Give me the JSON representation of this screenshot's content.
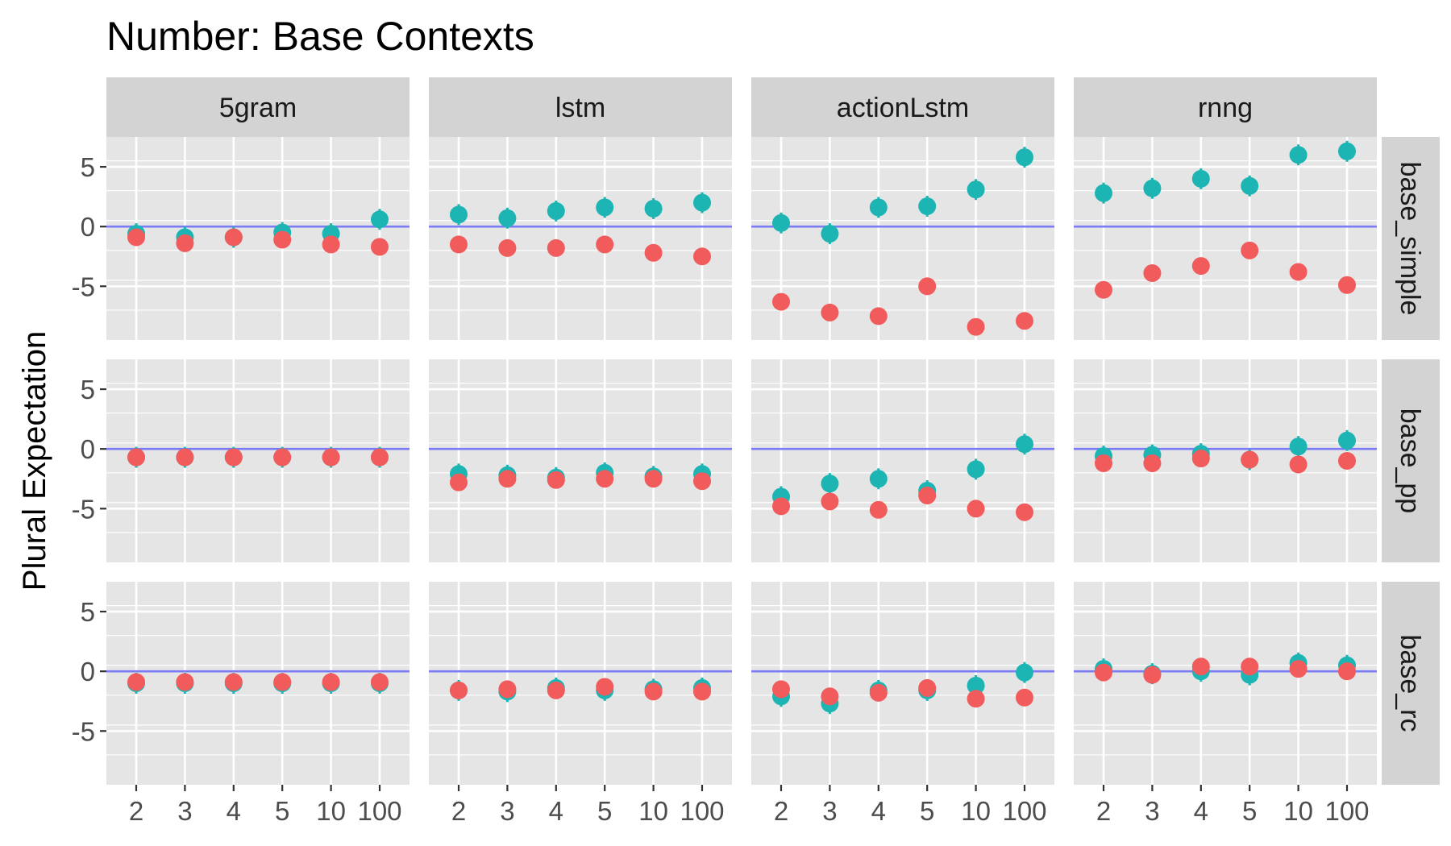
{
  "chart_data": {
    "type": "scatter",
    "title": "Number: Base Contexts",
    "ylabel": "Plural Expectation",
    "xlabel": "",
    "x_categories": [
      "2",
      "3",
      "4",
      "5",
      "10",
      "100"
    ],
    "y_ticks": [
      5,
      0,
      -5
    ],
    "ylim": [
      -9.5,
      7.5
    ],
    "reference_line": 0,
    "columns": [
      "5gram",
      "lstm",
      "actionLstm",
      "rnng"
    ],
    "rows": [
      "base_simple",
      "base_pp",
      "base_rc"
    ],
    "grid": true,
    "legend": "none",
    "colors": {
      "teal": "#1cb5b3",
      "red": "#f15b5b",
      "reference_line": "#7b7bf5",
      "panel_bg": "#e5e5e5",
      "strip_bg": "#d3d3d3",
      "grid": "#ffffff"
    },
    "panels": [
      {
        "row": "base_simple",
        "column": "5gram",
        "teal": [
          -0.6,
          -0.9,
          -0.9,
          -0.5,
          -0.6,
          0.6
        ],
        "red": [
          -0.9,
          -1.4,
          -0.9,
          -1.1,
          -1.5,
          -1.7
        ]
      },
      {
        "row": "base_simple",
        "column": "lstm",
        "teal": [
          1.0,
          0.7,
          1.3,
          1.6,
          1.5,
          2.0
        ],
        "red": [
          -1.5,
          -1.8,
          -1.8,
          -1.5,
          -2.2,
          -2.5
        ]
      },
      {
        "row": "base_simple",
        "column": "actionLstm",
        "teal": [
          0.3,
          -0.6,
          1.6,
          1.7,
          3.1,
          5.8
        ],
        "red": [
          -6.3,
          -7.2,
          -7.5,
          -5.0,
          -8.4,
          -7.9
        ]
      },
      {
        "row": "base_simple",
        "column": "rnng",
        "teal": [
          2.8,
          3.2,
          4.0,
          3.4,
          6.0,
          6.3
        ],
        "red": [
          -5.3,
          -3.9,
          -3.3,
          -2.0,
          -3.8,
          -4.9
        ]
      },
      {
        "row": "base_pp",
        "column": "5gram",
        "teal": [
          -0.7,
          -0.7,
          -0.7,
          -0.7,
          -0.7,
          -0.7
        ],
        "red": [
          -0.7,
          -0.7,
          -0.7,
          -0.7,
          -0.7,
          -0.7
        ]
      },
      {
        "row": "base_pp",
        "column": "lstm",
        "teal": [
          -2.1,
          -2.2,
          -2.4,
          -2.0,
          -2.3,
          -2.1
        ],
        "red": [
          -2.8,
          -2.5,
          -2.6,
          -2.5,
          -2.5,
          -2.7
        ]
      },
      {
        "row": "base_pp",
        "column": "actionLstm",
        "teal": [
          -4.0,
          -2.9,
          -2.5,
          -3.5,
          -1.7,
          0.4
        ],
        "red": [
          -4.8,
          -4.4,
          -5.1,
          -3.9,
          -5.0,
          -5.3
        ]
      },
      {
        "row": "base_pp",
        "column": "rnng",
        "teal": [
          -0.6,
          -0.5,
          -0.4,
          -0.9,
          0.2,
          0.7
        ],
        "red": [
          -1.2,
          -1.2,
          -0.8,
          -0.9,
          -1.3,
          -1.0
        ]
      },
      {
        "row": "base_rc",
        "column": "5gram",
        "teal": [
          -1.0,
          -1.0,
          -1.0,
          -1.0,
          -1.0,
          -1.0
        ],
        "red": [
          -0.9,
          -0.9,
          -0.9,
          -0.9,
          -0.9,
          -0.9
        ]
      },
      {
        "row": "base_rc",
        "column": "lstm",
        "teal": [
          -1.6,
          -1.7,
          -1.4,
          -1.6,
          -1.5,
          -1.4
        ],
        "red": [
          -1.6,
          -1.5,
          -1.6,
          -1.3,
          -1.7,
          -1.7
        ]
      },
      {
        "row": "base_rc",
        "column": "actionLstm",
        "teal": [
          -2.1,
          -2.7,
          -1.6,
          -1.6,
          -1.2,
          -0.1
        ],
        "red": [
          -1.5,
          -2.1,
          -1.8,
          -1.4,
          -2.3,
          -2.2
        ]
      },
      {
        "row": "base_rc",
        "column": "rnng",
        "teal": [
          0.2,
          -0.2,
          0.0,
          -0.3,
          0.7,
          0.5
        ],
        "red": [
          -0.1,
          -0.3,
          0.4,
          0.4,
          0.2,
          0.0
        ]
      }
    ]
  }
}
